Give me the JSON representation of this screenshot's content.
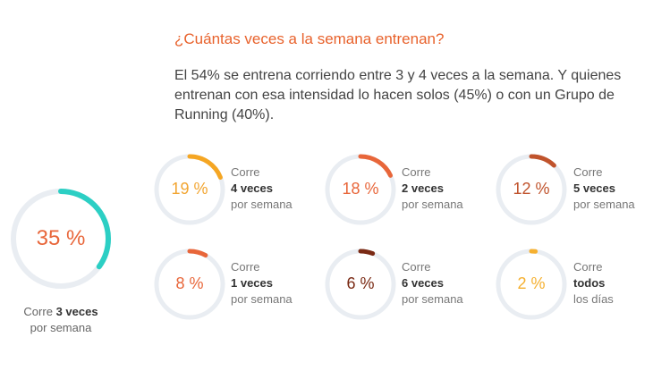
{
  "title": "¿Cuántas veces a la semana entrenan?",
  "paragraph": "El 54% se entrena corriendo entre 3 y 4 veces a la semana. Y quienes entrenan con esa intensidad lo hacen solos (45%) o con un Grupo de Running (40%).",
  "track_color": "#e9edf2",
  "chart_data": {
    "type": "donut",
    "items": [
      {
        "value": 35,
        "label": "35 %",
        "line1": "Corre",
        "bold": "3 veces",
        "line3": "por semana",
        "ring": "#2ccfc4",
        "text": "#e8663a"
      },
      {
        "value": 19,
        "label": "19 %",
        "line1": "Corre",
        "bold": "4 veces",
        "line3": "por semana",
        "ring": "#f5a623",
        "text": "#f2a531"
      },
      {
        "value": 18,
        "label": "18 %",
        "line1": "Corre",
        "bold": "2 veces",
        "line3": "por semana",
        "ring": "#e8663a",
        "text": "#e8663a"
      },
      {
        "value": 12,
        "label": "12 %",
        "line1": "Corre",
        "bold": "5 veces",
        "line3": "por semana",
        "ring": "#c0532c",
        "text": "#c0532c"
      },
      {
        "value": 8,
        "label": "8 %",
        "line1": "Corre",
        "bold": "1 veces",
        "line3": "por semana",
        "ring": "#e8663a",
        "text": "#e8663a"
      },
      {
        "value": 6,
        "label": "6 %",
        "line1": "Corre",
        "bold": "6 veces",
        "line3": "por semana",
        "ring": "#7a2a14",
        "text": "#7a2a14"
      },
      {
        "value": 2,
        "label": "2 %",
        "line1": "Corre",
        "bold": "todos",
        "line3": "los días",
        "ring": "#f5b030",
        "text": "#f5b030"
      }
    ]
  }
}
